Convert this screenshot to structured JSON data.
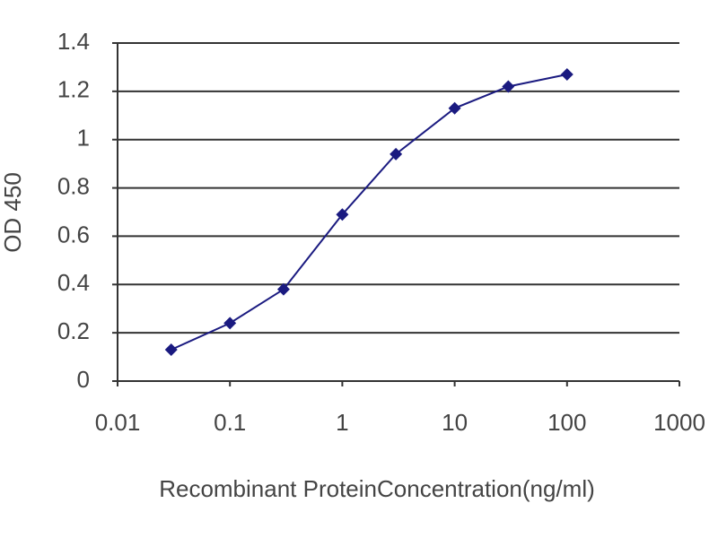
{
  "chart_data": {
    "type": "line",
    "x_label": "Recombinant ProteinConcentration(ng/ml)",
    "y_label": "OD 450",
    "x": [
      0.03,
      0.1,
      0.3,
      1,
      3,
      10,
      30,
      100
    ],
    "series": [
      {
        "color": "#1a1a80",
        "values": [
          0.13,
          0.24,
          0.38,
          0.69,
          0.94,
          1.13,
          1.22,
          1.27
        ]
      }
    ],
    "xscale": "log",
    "xlim": [
      0.01,
      1000
    ],
    "xticks": [
      0.01,
      0.1,
      1,
      10,
      100,
      1000
    ],
    "ylim": [
      0,
      1.4
    ],
    "yticks": [
      0,
      0.2,
      0.4,
      0.6,
      0.8,
      1,
      1.2,
      1.4
    ],
    "grid": true
  }
}
